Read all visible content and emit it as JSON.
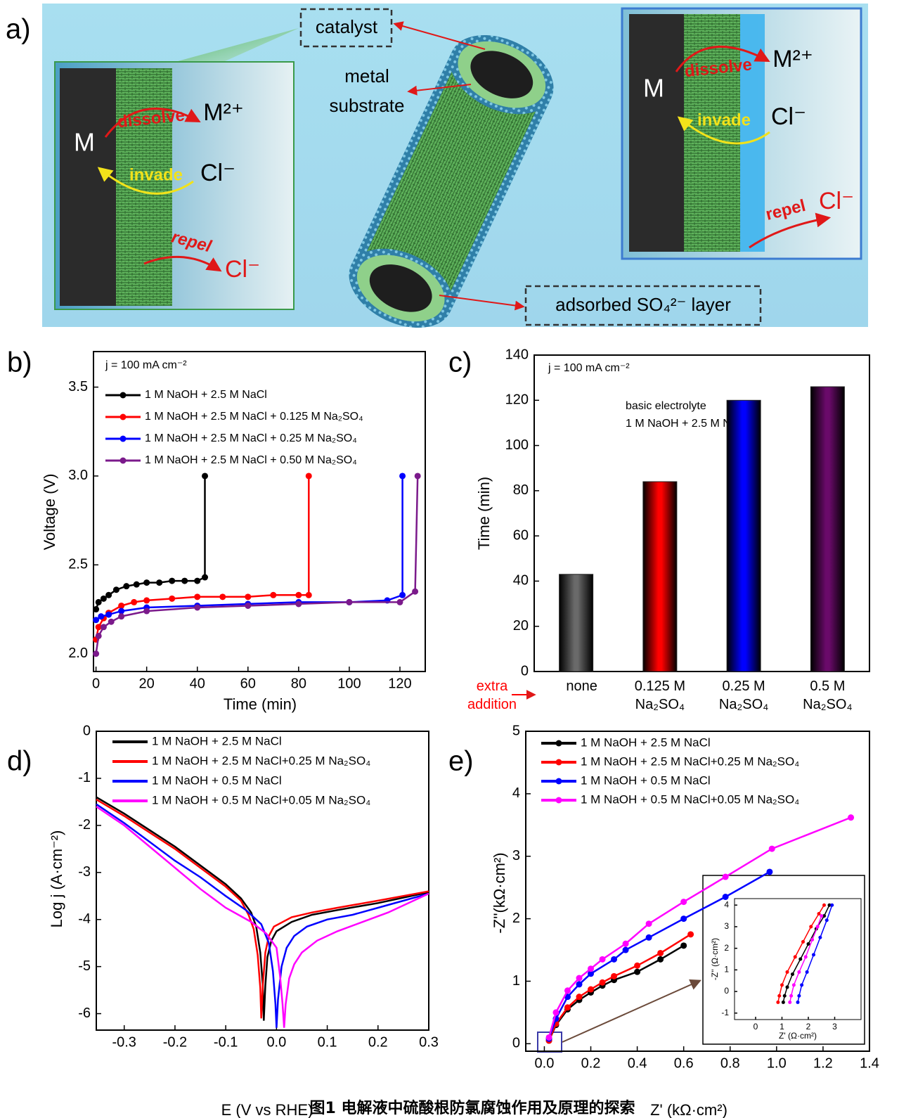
{
  "diagram": {
    "label": "a)",
    "catalyst": "catalyst",
    "metal_substrate": [
      "metal",
      "substrate"
    ],
    "layer": "adsorbed SO₄²⁻ layer",
    "left_box": {
      "metal": "M",
      "dissolve": "dissolve",
      "ion": "M²⁺",
      "invade": "invade",
      "chloride_in": "Cl⁻",
      "repel": "repel",
      "chloride_out": "Cl⁻"
    },
    "right_box": {
      "metal": "M",
      "dissolve": "dissolve",
      "ion": "M²⁺",
      "invade": "invade",
      "chloride_in": "Cl⁻",
      "repel": "repel",
      "chloride_out": "Cl⁻"
    }
  },
  "caption": "图1 电解液中硫酸根防氯腐蚀作用及原理的探索",
  "chart_data": [
    {
      "type": "line",
      "label": "b)",
      "xlabel": "Time (min)",
      "ylabel": "Voltage (V)",
      "markers": true,
      "annotations": [
        "j = 100 mA cm⁻²"
      ],
      "xlim": [
        -1,
        130
      ],
      "xticks": [
        0,
        20,
        40,
        60,
        80,
        100,
        120
      ],
      "ylim": [
        1.9,
        3.7
      ],
      "yticks": [
        {
          "value": 2,
          "label": "2.0"
        },
        2.5,
        {
          "value": 3,
          "label": "3.0"
        },
        3.5
      ],
      "series": [
        {
          "name": "1 M NaOH + 2.5 M NaCl",
          "color": "#000000",
          "x": [
            0,
            1,
            3,
            5,
            8,
            12,
            16,
            20,
            25,
            30,
            35,
            40,
            43,
            43
          ],
          "values": [
            2.25,
            2.29,
            2.31,
            2.33,
            2.36,
            2.38,
            2.39,
            2.4,
            2.4,
            2.41,
            2.41,
            2.41,
            2.43,
            3.0
          ]
        },
        {
          "name": "1 M NaOH + 2.5 M NaCl + 0.125 M Na₂SO₄",
          "color": "#ff0000",
          "x": [
            0,
            1,
            3,
            5,
            10,
            15,
            20,
            30,
            40,
            50,
            60,
            70,
            80,
            84,
            84
          ],
          "values": [
            2.08,
            2.15,
            2.2,
            2.23,
            2.27,
            2.29,
            2.3,
            2.31,
            2.32,
            2.32,
            2.32,
            2.33,
            2.33,
            2.33,
            3.0
          ]
        },
        {
          "name": "1 M NaOH + 2.5 M NaCl + 0.25 M Na₂SO₄",
          "color": "#0000ff",
          "x": [
            0,
            2,
            5,
            10,
            20,
            40,
            60,
            80,
            100,
            115,
            121,
            121
          ],
          "values": [
            2.19,
            2.21,
            2.22,
            2.24,
            2.26,
            2.27,
            2.28,
            2.29,
            2.29,
            2.3,
            2.33,
            3.0
          ]
        },
        {
          "name": "1 M NaOH + 2.5 M NaCl + 0.50 M Na₂SO₄",
          "color": "#7b1a8b",
          "x": [
            0,
            1,
            3,
            6,
            10,
            20,
            40,
            60,
            80,
            100,
            120,
            126,
            127
          ],
          "values": [
            2.0,
            2.1,
            2.15,
            2.18,
            2.21,
            2.24,
            2.26,
            2.27,
            2.28,
            2.29,
            2.29,
            2.35,
            3.0
          ]
        }
      ]
    },
    {
      "type": "bar",
      "label": "c)",
      "ylabel": "Time (min)",
      "annotations": [
        "j = 100 mA cm⁻²",
        "basic electrolyte",
        "1 M NaOH + 2.5 M NaCl"
      ],
      "category_title": "extra addition",
      "categories": [
        "none",
        "0.125 M Na₂SO₄",
        "0.25 M Na₂SO₄",
        "0.5 M Na₂SO₄"
      ],
      "values": [
        43,
        84,
        120,
        126
      ],
      "colors": [
        "#6a6a6a",
        "#ff0000",
        "#0000ff",
        "#6a0a6a"
      ],
      "ylim": [
        0,
        140
      ],
      "yticks": [
        0,
        20,
        40,
        60,
        80,
        100,
        120,
        140
      ]
    },
    {
      "type": "line",
      "label": "d)",
      "xlabel": "E (V vs RHE)",
      "ylabel": "Log j (A·cm⁻²)",
      "markers": false,
      "xlim": [
        -0.355,
        0.3
      ],
      "xticks": [
        -0.3,
        -0.2,
        -0.1,
        {
          "value": 0,
          "label": "0.0"
        },
        0.1,
        0.2,
        0.3
      ],
      "ylim": [
        -6.35,
        0
      ],
      "yticks": [
        -6,
        -5,
        -4,
        -3,
        -2,
        -1,
        0
      ],
      "series": [
        {
          "name": "1 M NaOH + 2.5 M NaCl",
          "color": "#000000",
          "x": [
            -0.355,
            -0.3,
            -0.25,
            -0.2,
            -0.15,
            -0.1,
            -0.07,
            -0.05,
            -0.04,
            -0.032,
            -0.027,
            -0.025,
            -0.022,
            -0.018,
            -0.01,
            0,
            0.03,
            0.07,
            0.12,
            0.2,
            0.3
          ],
          "values": [
            -1.4,
            -1.75,
            -2.1,
            -2.45,
            -2.85,
            -3.25,
            -3.55,
            -3.85,
            -4.15,
            -4.7,
            -5.4,
            -6.15,
            -5.4,
            -4.8,
            -4.45,
            -4.25,
            -4.05,
            -3.9,
            -3.8,
            -3.65,
            -3.42
          ]
        },
        {
          "name": "1 M NaOH + 2.5 M NaCl+0.25 M Na₂SO₄",
          "color": "#ff0000",
          "x": [
            -0.355,
            -0.3,
            -0.25,
            -0.2,
            -0.15,
            -0.1,
            -0.07,
            -0.055,
            -0.045,
            -0.037,
            -0.032,
            -0.03,
            -0.027,
            -0.022,
            -0.015,
            -0.005,
            0.03,
            0.07,
            0.12,
            0.2,
            0.3
          ],
          "values": [
            -1.45,
            -1.8,
            -2.15,
            -2.5,
            -2.9,
            -3.3,
            -3.6,
            -3.9,
            -4.2,
            -4.75,
            -5.45,
            -6.1,
            -5.4,
            -4.7,
            -4.35,
            -4.15,
            -3.95,
            -3.85,
            -3.75,
            -3.6,
            -3.4
          ]
        },
        {
          "name": "1 M NaOH + 0.5 M NaCl",
          "color": "#0000ff",
          "x": [
            -0.355,
            -0.3,
            -0.25,
            -0.2,
            -0.15,
            -0.1,
            -0.06,
            -0.03,
            -0.015,
            -0.007,
            -0.002,
            0,
            0.003,
            0.01,
            0.02,
            0.035,
            0.06,
            0.1,
            0.15,
            0.2,
            0.3
          ],
          "values": [
            -1.55,
            -1.95,
            -2.35,
            -2.75,
            -3.1,
            -3.5,
            -3.8,
            -4.1,
            -4.5,
            -5.1,
            -5.8,
            -6.3,
            -5.7,
            -5.0,
            -4.6,
            -4.35,
            -4.15,
            -4.0,
            -3.9,
            -3.75,
            -3.45
          ]
        },
        {
          "name": "1 M NaOH + 0.5 M NaCl+0.05 M Na₂SO₄",
          "color": "#ff00ff",
          "x": [
            -0.355,
            -0.3,
            -0.25,
            -0.2,
            -0.15,
            -0.1,
            -0.05,
            -0.02,
            0,
            0.007,
            0.012,
            0.015,
            0.018,
            0.025,
            0.035,
            0.05,
            0.08,
            0.12,
            0.17,
            0.22,
            0.3
          ],
          "values": [
            -1.6,
            -2.0,
            -2.45,
            -2.9,
            -3.35,
            -3.75,
            -4.05,
            -4.3,
            -4.6,
            -5.2,
            -5.8,
            -6.3,
            -5.8,
            -5.25,
            -4.95,
            -4.7,
            -4.45,
            -4.25,
            -4.05,
            -3.85,
            -3.45
          ]
        }
      ]
    },
    {
      "type": "line",
      "label": "e)",
      "xlabel": "Z' (kΩ·cm²)",
      "ylabel": "-Z''(kΩ·cm²)",
      "markers": true,
      "xlim": [
        -0.08,
        1.4
      ],
      "xticks": [
        {
          "value": 0,
          "label": "0.0"
        },
        0.2,
        0.4,
        0.6,
        0.8,
        {
          "value": 1,
          "label": "1.0"
        },
        1.2,
        1.4
      ],
      "ylim": [
        -0.12,
        5
      ],
      "yticks": [
        0,
        1,
        2,
        3,
        4,
        5
      ],
      "series": [
        {
          "name": "1 M NaOH + 2.5 M NaCl",
          "color": "#000000",
          "x": [
            0.02,
            0.05,
            0.1,
            0.15,
            0.2,
            0.25,
            0.3,
            0.4,
            0.5,
            0.6
          ],
          "values": [
            0.05,
            0.3,
            0.55,
            0.7,
            0.82,
            0.93,
            1.02,
            1.15,
            1.35,
            1.57
          ]
        },
        {
          "name": "1 M NaOH + 2.5 M NaCl+0.25 M Na₂SO₄",
          "color": "#ff0000",
          "x": [
            0.02,
            0.05,
            0.1,
            0.15,
            0.2,
            0.25,
            0.3,
            0.4,
            0.5,
            0.63
          ],
          "values": [
            0.05,
            0.32,
            0.58,
            0.75,
            0.87,
            0.98,
            1.08,
            1.25,
            1.45,
            1.75
          ]
        },
        {
          "name": "1 M NaOH + 0.5 M NaCl",
          "color": "#0000ff",
          "x": [
            0.02,
            0.05,
            0.1,
            0.15,
            0.2,
            0.3,
            0.35,
            0.45,
            0.6,
            0.78,
            0.97
          ],
          "values": [
            0.08,
            0.4,
            0.75,
            0.95,
            1.12,
            1.35,
            1.5,
            1.7,
            2.0,
            2.35,
            2.75
          ]
        },
        {
          "name": "1 M NaOH + 0.5 M NaCl+0.05 M Na₂SO₄",
          "color": "#ff00ff",
          "x": [
            0.02,
            0.05,
            0.1,
            0.15,
            0.2,
            0.25,
            0.35,
            0.45,
            0.6,
            0.78,
            0.98,
            1.32
          ],
          "values": [
            0.1,
            0.5,
            0.85,
            1.05,
            1.2,
            1.35,
            1.6,
            1.92,
            2.27,
            2.67,
            3.12,
            3.62
          ]
        }
      ]
    },
    {
      "type": "line",
      "xlabel": "Z' (Ω·cm²)",
      "ylabel": "-Z'' (Ω·cm²)",
      "markers": true,
      "xlim": [
        -0.8,
        4
      ],
      "xticks": [
        0,
        1,
        2,
        3
      ],
      "ylim": [
        -1.3,
        4.3
      ],
      "yticks": [
        -1,
        0,
        1,
        2,
        3,
        4
      ],
      "series": [
        {
          "color": "#000000",
          "x": [
            1.05,
            1.1,
            1.2,
            1.4,
            1.7,
            2.0,
            2.3,
            2.6,
            2.8
          ],
          "values": [
            -0.5,
            -0.2,
            0.2,
            0.8,
            1.5,
            2.2,
            2.9,
            3.5,
            4.0
          ]
        },
        {
          "color": "#ff0000",
          "x": [
            0.85,
            0.9,
            1.0,
            1.2,
            1.5,
            1.8,
            2.1,
            2.4,
            2.6
          ],
          "values": [
            -0.5,
            -0.2,
            0.3,
            0.9,
            1.6,
            2.3,
            3.0,
            3.6,
            4.0
          ]
        },
        {
          "color": "#0000ff",
          "x": [
            1.6,
            1.65,
            1.75,
            1.95,
            2.2,
            2.45,
            2.7,
            2.9
          ],
          "values": [
            -0.5,
            -0.2,
            0.3,
            0.9,
            1.7,
            2.5,
            3.3,
            4.0
          ]
        },
        {
          "color": "#ff00ff",
          "x": [
            1.3,
            1.35,
            1.45,
            1.65,
            1.9,
            2.15,
            2.35,
            2.5
          ],
          "values": [
            -0.5,
            -0.2,
            0.3,
            0.9,
            1.6,
            2.4,
            3.0,
            3.5
          ]
        }
      ]
    }
  ]
}
